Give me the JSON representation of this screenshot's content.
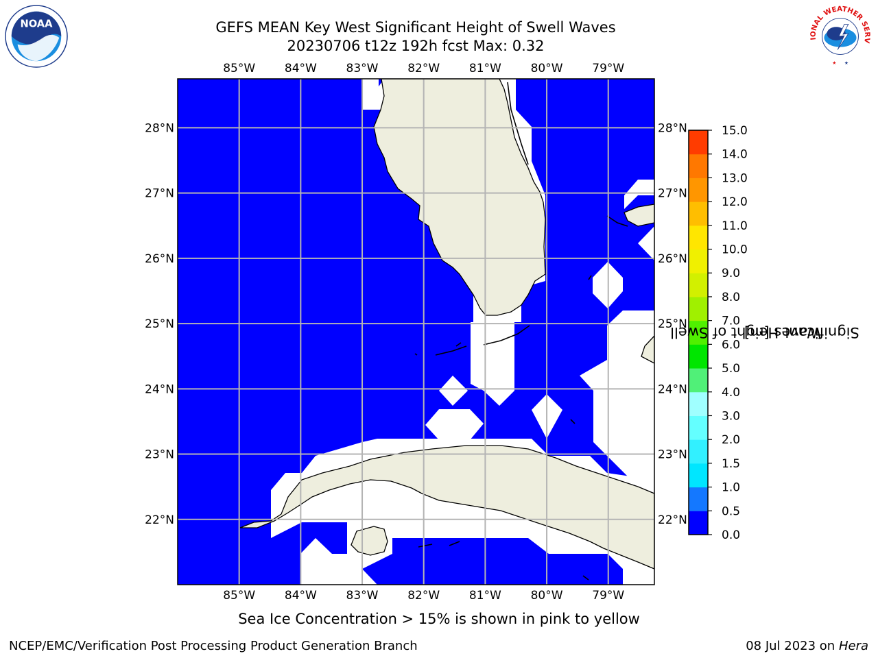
{
  "title": {
    "line1": "GEFS MEAN Key West Significant Height of Swell Waves",
    "line2": "20230706 t12z 192h fcst   Max: 0.32"
  },
  "map": {
    "lon_range": [
      -86.0,
      -78.25
    ],
    "lat_range": [
      21.0,
      28.75
    ],
    "lon_ticks": [
      {
        "value": -85,
        "label": "85°W"
      },
      {
        "value": -84,
        "label": "84°W"
      },
      {
        "value": -83,
        "label": "83°W"
      },
      {
        "value": -82,
        "label": "82°W"
      },
      {
        "value": -81,
        "label": "81°W"
      },
      {
        "value": -80,
        "label": "80°W"
      },
      {
        "value": -79,
        "label": "79°W"
      }
    ],
    "lat_ticks": [
      {
        "value": 28,
        "label": "28°N"
      },
      {
        "value": 27,
        "label": "27°N"
      },
      {
        "value": 26,
        "label": "26°N"
      },
      {
        "value": 25,
        "label": "25°N"
      },
      {
        "value": 24,
        "label": "24°N"
      },
      {
        "value": 23,
        "label": "23°N"
      },
      {
        "value": 22,
        "label": "22°N"
      }
    ],
    "water_color": "#0000ff",
    "land_color": "#eeeede",
    "grid_color": "#b4b4b4"
  },
  "colorbar": {
    "label_line1": "Significant Height of Swell",
    "label_line2": "Waves [m]",
    "levels": [
      {
        "value": 0.0,
        "label": "0.0"
      },
      {
        "value": 0.5,
        "label": "0.5"
      },
      {
        "value": 1.0,
        "label": "1.0"
      },
      {
        "value": 1.5,
        "label": "1.5"
      },
      {
        "value": 2.0,
        "label": "2.0"
      },
      {
        "value": 3.0,
        "label": "3.0"
      },
      {
        "value": 4.0,
        "label": "4.0"
      },
      {
        "value": 5.0,
        "label": "5.0"
      },
      {
        "value": 6.0,
        "label": "6.0"
      },
      {
        "value": 7.0,
        "label": "7.0"
      },
      {
        "value": 8.0,
        "label": "8.0"
      },
      {
        "value": 9.0,
        "label": "9.0"
      },
      {
        "value": 10.0,
        "label": "10.0"
      },
      {
        "value": 11.0,
        "label": "11.0"
      },
      {
        "value": 12.0,
        "label": "12.0"
      },
      {
        "value": 13.0,
        "label": "13.0"
      },
      {
        "value": 14.0,
        "label": "14.0"
      },
      {
        "value": 15.0,
        "label": "15.0"
      }
    ],
    "colors": [
      "#0000ff",
      "#1478ff",
      "#00e6ff",
      "#32f0ff",
      "#64ffff",
      "#a0ffff",
      "#50f078",
      "#00e600",
      "#50f000",
      "#a0f000",
      "#d2f000",
      "#f0f000",
      "#ffe600",
      "#ffbe00",
      "#ff9600",
      "#ff7800",
      "#ff3c00",
      "#ff0000"
    ]
  },
  "ice_note": "Sea Ice Concentration > 15% is shown in pink to yellow",
  "footer": {
    "credit": "NCEP/EMC/Verification Post Processing Product Generation Branch",
    "date": "08 Jul 2023 on ",
    "host": "Hera"
  },
  "logos": {
    "noaa_text": "NOAA",
    "nws_text": "NATIONAL WEATHER SERVICE"
  }
}
